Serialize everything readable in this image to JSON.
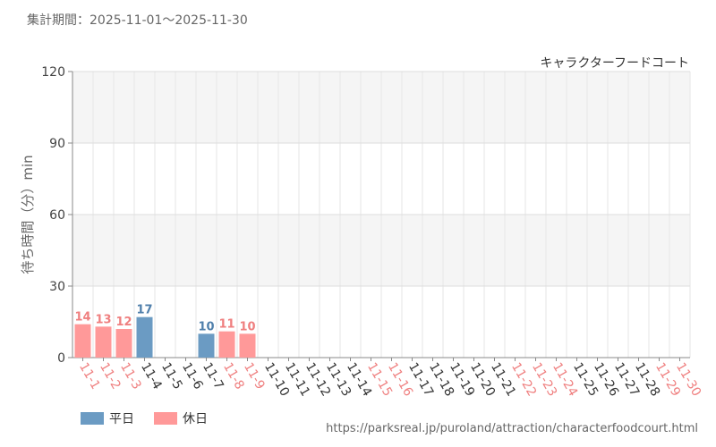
{
  "header": {
    "period_label": "集計期間：2025-11-01～2025-11-30"
  },
  "footer": {
    "source_url": "https://parksreal.jp/puroland/attraction/characterfoodcourt.html"
  },
  "colors": {
    "weekday": "#6b9bc3",
    "holiday": "#ff9999",
    "holiday_text": "#ef7f7f",
    "weekday_text": "#4f7fab"
  },
  "chart_data": {
    "type": "bar",
    "title": "キャラクターフードコート",
    "ylabel": "待ち時間（分）min",
    "xlabel": "",
    "ylim": [
      0,
      120
    ],
    "yticks": [
      0,
      30,
      60,
      90,
      120
    ],
    "grid": true,
    "legend_position": "bottom-left",
    "categories": [
      "11-1",
      "11-2",
      "11-3",
      "11-4",
      "11-5",
      "11-6",
      "11-7",
      "11-8",
      "11-9",
      "11-10",
      "11-11",
      "11-12",
      "11-13",
      "11-14",
      "11-15",
      "11-16",
      "11-17",
      "11-18",
      "11-19",
      "11-20",
      "11-21",
      "11-22",
      "11-23",
      "11-24",
      "11-25",
      "11-26",
      "11-27",
      "11-28",
      "11-29",
      "11-30"
    ],
    "day_type": [
      "holiday",
      "holiday",
      "holiday",
      "weekday",
      "weekday",
      "weekday",
      "weekday",
      "holiday",
      "holiday",
      "weekday",
      "weekday",
      "weekday",
      "weekday",
      "weekday",
      "holiday",
      "holiday",
      "weekday",
      "weekday",
      "weekday",
      "weekday",
      "weekday",
      "holiday",
      "holiday",
      "holiday",
      "weekday",
      "weekday",
      "weekday",
      "weekday",
      "holiday",
      "holiday"
    ],
    "values": [
      14,
      13,
      12,
      17,
      null,
      null,
      10,
      11,
      10,
      null,
      null,
      null,
      null,
      null,
      null,
      null,
      null,
      null,
      null,
      null,
      null,
      null,
      null,
      null,
      null,
      null,
      null,
      null,
      null,
      null
    ],
    "series": [
      {
        "name": "平日",
        "key": "weekday"
      },
      {
        "name": "休日",
        "key": "holiday"
      }
    ]
  }
}
